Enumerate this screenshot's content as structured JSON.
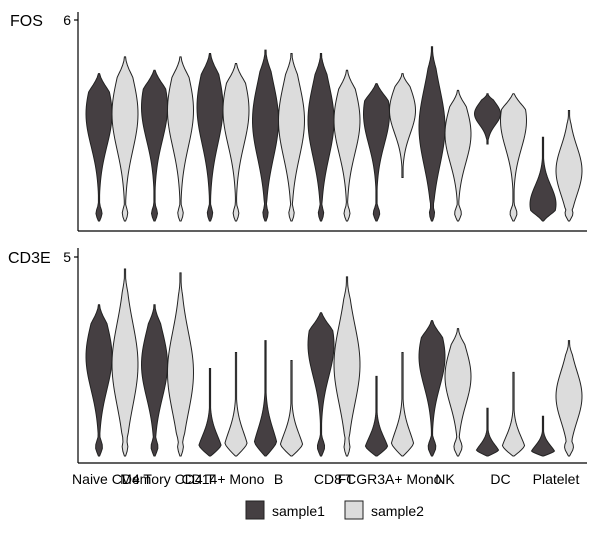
{
  "chart_data": {
    "type": "violin",
    "categories": [
      "Naive CD4 T",
      "Memory CD4 T",
      "CD14+ Mono",
      "B",
      "CD8 T",
      "FCGR3A+ Mono",
      "NK",
      "DC",
      "Platelet"
    ],
    "groups": [
      {
        "name": "sample1",
        "color": "#453f42"
      },
      {
        "name": "sample2",
        "color": "#dcdcdc"
      }
    ],
    "legend_position": "bottom",
    "grid": false,
    "panels": [
      {
        "gene": "FOS",
        "tick": "6",
        "ylim": [
          0,
          6
        ],
        "violins": [
          {
            "category": "Naive CD4 T",
            "group": "sample1",
            "min": 0,
            "max": 4.4,
            "mode": 3.2
          },
          {
            "category": "Naive CD4 T",
            "group": "sample2",
            "min": 0,
            "max": 4.9,
            "mode": 3.2
          },
          {
            "category": "Memory CD4 T",
            "group": "sample1",
            "min": 0,
            "max": 4.5,
            "mode": 3.4
          },
          {
            "category": "Memory CD4 T",
            "group": "sample2",
            "min": 0,
            "max": 4.9,
            "mode": 3.3
          },
          {
            "category": "CD14+ Mono",
            "group": "sample1",
            "min": 0,
            "max": 5.0,
            "mode": 3.4
          },
          {
            "category": "CD14+ Mono",
            "group": "sample2",
            "min": 0,
            "max": 4.7,
            "mode": 3.3
          },
          {
            "category": "B",
            "group": "sample1",
            "min": 0,
            "max": 5.1,
            "mode": 3.0
          },
          {
            "category": "B",
            "group": "sample2",
            "min": 0,
            "max": 5.0,
            "mode": 3.0
          },
          {
            "category": "CD8 T",
            "group": "sample1",
            "min": 0,
            "max": 5.0,
            "mode": 3.0
          },
          {
            "category": "CD8 T",
            "group": "sample2",
            "min": 0,
            "max": 4.5,
            "mode": 3.0
          },
          {
            "category": "FCGR3A+ Mono",
            "group": "sample1",
            "min": 0,
            "max": 4.1,
            "mode": 3.2
          },
          {
            "category": "FCGR3A+ Mono",
            "group": "sample2",
            "min": 1.3,
            "max": 4.4,
            "mode": 3.3
          },
          {
            "category": "NK",
            "group": "sample1",
            "min": 0,
            "max": 5.2,
            "mode": 2.8
          },
          {
            "category": "NK",
            "group": "sample2",
            "min": 0,
            "max": 3.9,
            "mode": 2.6
          },
          {
            "category": "DC",
            "group": "sample1",
            "min": 2.3,
            "max": 3.8,
            "mode": 3.2
          },
          {
            "category": "DC",
            "group": "sample2",
            "min": 0,
            "max": 3.8,
            "mode": 3.0
          },
          {
            "category": "Platelet",
            "group": "sample1",
            "min": 0,
            "max": 2.5,
            "mode": 0.5
          },
          {
            "category": "Platelet",
            "group": "sample2",
            "min": 0,
            "max": 3.3,
            "mode": 1.5
          }
        ]
      },
      {
        "gene": "CD3E",
        "tick": "5",
        "ylim": [
          0,
          5
        ],
        "violins": [
          {
            "category": "Naive CD4 T",
            "group": "sample1",
            "min": 0,
            "max": 3.8,
            "mode": 2.5
          },
          {
            "category": "Naive CD4 T",
            "group": "sample2",
            "min": 0,
            "max": 4.7,
            "mode": 2.3
          },
          {
            "category": "Memory CD4 T",
            "group": "sample1",
            "min": 0,
            "max": 3.8,
            "mode": 2.3
          },
          {
            "category": "Memory CD4 T",
            "group": "sample2",
            "min": 0,
            "max": 4.6,
            "mode": 2.1
          },
          {
            "category": "CD14+ Mono",
            "group": "sample1",
            "min": 0,
            "max": 2.2,
            "mode": 0
          },
          {
            "category": "CD14+ Mono",
            "group": "sample2",
            "min": 0,
            "max": 2.6,
            "mode": 0
          },
          {
            "category": "B",
            "group": "sample1",
            "min": 0,
            "max": 2.9,
            "mode": 0
          },
          {
            "category": "B",
            "group": "sample2",
            "min": 0,
            "max": 2.4,
            "mode": 0
          },
          {
            "category": "CD8 T",
            "group": "sample1",
            "min": 0,
            "max": 3.6,
            "mode": 2.8
          },
          {
            "category": "CD8 T",
            "group": "sample2",
            "min": 0,
            "max": 4.5,
            "mode": 2.3
          },
          {
            "category": "FCGR3A+ Mono",
            "group": "sample1",
            "min": 0,
            "max": 2.0,
            "mode": 0
          },
          {
            "category": "FCGR3A+ Mono",
            "group": "sample2",
            "min": 0,
            "max": 2.6,
            "mode": 0
          },
          {
            "category": "NK",
            "group": "sample1",
            "min": 0,
            "max": 3.4,
            "mode": 2.5
          },
          {
            "category": "NK",
            "group": "sample2",
            "min": 0,
            "max": 3.2,
            "mode": 2.0
          },
          {
            "category": "DC",
            "group": "sample1",
            "min": 0,
            "max": 1.2,
            "mode": 0
          },
          {
            "category": "DC",
            "group": "sample2",
            "min": 0,
            "max": 2.1,
            "mode": 0
          },
          {
            "category": "Platelet",
            "group": "sample1",
            "min": 0,
            "max": 1.0,
            "mode": 0
          },
          {
            "category": "Platelet",
            "group": "sample2",
            "min": 0,
            "max": 2.9,
            "mode": 1.5
          }
        ]
      }
    ]
  }
}
